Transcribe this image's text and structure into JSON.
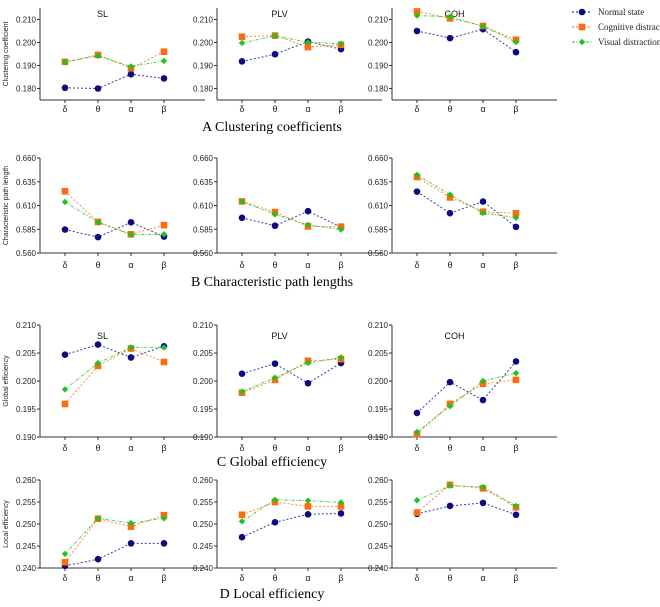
{
  "legend": [
    {
      "name": "Normal state",
      "color": "#0b0b80",
      "marker": "circle"
    },
    {
      "name": "Cognitive distraction",
      "color": "#ff6a10",
      "marker": "square"
    },
    {
      "name": "Visual distraction",
      "color": "#1fc21f",
      "marker": "diamond"
    }
  ],
  "chart_data": [
    {
      "type": "line",
      "row": "A",
      "panel_title": "A  Clustering coefficients",
      "ylabel": "Clustering coefficient",
      "ylim": [
        0.175,
        0.215
      ],
      "yticks": [
        "0.180",
        "0.190",
        "0.200",
        "0.210"
      ],
      "categories": [
        "δ",
        "θ",
        "α",
        "β"
      ],
      "plots": [
        {
          "title": "SL",
          "series": [
            [
              0.1803,
              0.18,
              0.1862,
              0.1844
            ],
            [
              0.1916,
              0.1946,
              0.1888,
              0.196
            ],
            [
              0.1915,
              0.1942,
              0.1896,
              0.192
            ]
          ]
        },
        {
          "title": "PLV",
          "series": [
            [
              0.1918,
              0.1949,
              0.2004,
              0.1971
            ],
            [
              0.2025,
              0.203,
              0.198,
              0.199
            ],
            [
              0.1998,
              0.2029,
              0.2001,
              0.1995
            ]
          ]
        },
        {
          "title": "COH",
          "series": [
            [
              0.205,
              0.2019,
              0.2058,
              0.1958
            ],
            [
              0.2135,
              0.2105,
              0.2072,
              0.2012
            ],
            [
              0.2117,
              0.2112,
              0.207,
              0.2002
            ]
          ]
        }
      ]
    },
    {
      "type": "line",
      "row": "B",
      "panel_title": "B  Characteristic path lengths",
      "ylabel": "Characteristic path length",
      "ylim": [
        0.56,
        0.66
      ],
      "yticks": [
        "0.560",
        "0.585",
        "0.610",
        "0.635",
        "0.660"
      ],
      "categories": [
        "δ",
        "θ",
        "α",
        "β"
      ],
      "plots": [
        {
          "title": "",
          "series": [
            [
              0.5847,
              0.5767,
              0.5923,
              0.5773
            ],
            [
              0.625,
              0.5927,
              0.5797,
              0.5893
            ],
            [
              0.6137,
              0.5923,
              0.5793,
              0.5797
            ]
          ]
        },
        {
          "title": "",
          "series": [
            [
              0.597,
              0.5887,
              0.604,
              0.5873
            ],
            [
              0.6143,
              0.603,
              0.588,
              0.5877
            ],
            [
              0.614,
              0.6007,
              0.5897,
              0.5847
            ]
          ]
        },
        {
          "title": "",
          "series": [
            [
              0.6246,
              0.6019,
              0.6142,
              0.5875
            ],
            [
              0.64,
              0.6185,
              0.6035,
              0.6018
            ],
            [
              0.6423,
              0.6215,
              0.6022,
              0.5972
            ]
          ]
        }
      ]
    },
    {
      "type": "line",
      "row": "C",
      "panel_title": "C  Global efficiency",
      "ylabel": "Global efficiency",
      "ylim": [
        0.19,
        0.21
      ],
      "yticks": [
        "0.190",
        "0.195",
        "0.200",
        "0.205",
        "0.210"
      ],
      "categories": [
        "δ",
        "θ",
        "α",
        "β"
      ],
      "plots": [
        {
          "title": "SL",
          "series": [
            [
              0.2047,
              0.2065,
              0.2042,
              0.2062
            ],
            [
              0.1959,
              0.2027,
              0.2058,
              0.2034
            ],
            [
              0.1985,
              0.2032,
              0.206,
              0.206
            ]
          ]
        },
        {
          "title": "PLV",
          "series": [
            [
              0.2013,
              0.2031,
              0.1996,
              0.2032
            ],
            [
              0.1979,
              0.2002,
              0.2036,
              0.2039
            ],
            [
              0.1981,
              0.2006,
              0.2032,
              0.2042
            ]
          ]
        },
        {
          "title": "COH",
          "series": [
            [
              0.1943,
              0.1998,
              0.1966,
              0.2035
            ],
            [
              0.1905,
              0.1959,
              0.1995,
              0.2002
            ],
            [
              0.1909,
              0.1955,
              0.2,
              0.2014
            ]
          ]
        }
      ]
    },
    {
      "type": "line",
      "row": "D",
      "panel_title": "D    Local efficiency",
      "ylabel": "Local efficiency",
      "ylim": [
        0.24,
        0.26
      ],
      "yticks": [
        "0.240",
        "0.245",
        "0.250",
        "0.255",
        "0.260"
      ],
      "categories": [
        "δ",
        "θ",
        "α",
        "β"
      ],
      "plots": [
        {
          "title": "",
          "series": [
            [
              0.2405,
              0.242,
              0.2456,
              0.2456
            ],
            [
              0.2413,
              0.2512,
              0.2494,
              0.252
            ],
            [
              0.2432,
              0.2513,
              0.2502,
              0.2513
            ]
          ]
        },
        {
          "title": "",
          "series": [
            [
              0.247,
              0.2504,
              0.2522,
              0.2524
            ],
            [
              0.2521,
              0.255,
              0.254,
              0.254
            ],
            [
              0.2506,
              0.2555,
              0.2553,
              0.2549
            ]
          ]
        },
        {
          "title": "",
          "series": [
            [
              0.2523,
              0.2541,
              0.2548,
              0.2521
            ],
            [
              0.2526,
              0.2589,
              0.2581,
              0.2538
            ],
            [
              0.2554,
              0.2587,
              0.2584,
              0.2541
            ]
          ]
        }
      ]
    }
  ]
}
